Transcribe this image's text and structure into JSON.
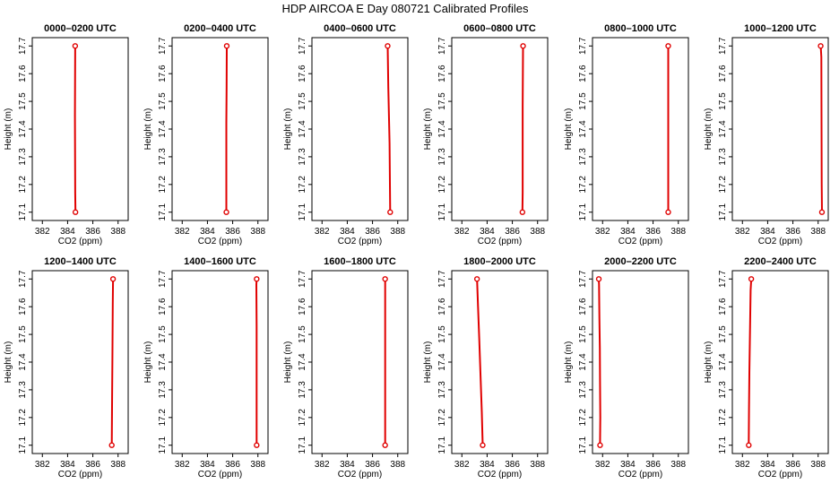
{
  "figure": {
    "title": "HDP AIRCOA E  Day 080721  Calibrated Profiles"
  },
  "colors": {
    "profile_line": "#e00000",
    "marker": "#e00000",
    "axis": "#000000",
    "background": "#ffffff"
  },
  "chart_data": [
    {
      "type": "line",
      "title": "0000–0200 UTC",
      "xlabel": "CO2 (ppm)",
      "ylabel": "Height (m)",
      "xlim": [
        381.2,
        388.8
      ],
      "ylim": [
        17.07,
        17.73
      ],
      "xticks": [
        382,
        384,
        386,
        388
      ],
      "yticks": [
        17.1,
        17.2,
        17.3,
        17.4,
        17.5,
        17.6,
        17.7
      ],
      "series": [
        {
          "x": [
            384.62,
            384.6,
            384.58,
            384.6
          ],
          "y": [
            17.1,
            17.17,
            17.45,
            17.7
          ]
        }
      ],
      "markers": [
        {
          "x": 384.62,
          "y": 17.1
        },
        {
          "x": 384.6,
          "y": 17.7
        }
      ]
    },
    {
      "type": "line",
      "title": "0200–0400 UTC",
      "xlabel": "CO2 (ppm)",
      "ylabel": "Height (m)",
      "xlim": [
        381.2,
        388.8
      ],
      "ylim": [
        17.07,
        17.73
      ],
      "xticks": [
        382,
        384,
        386,
        388
      ],
      "yticks": [
        17.1,
        17.2,
        17.3,
        17.4,
        17.5,
        17.6,
        17.7
      ],
      "series": [
        {
          "x": [
            385.5,
            385.5,
            385.52,
            385.53
          ],
          "y": [
            17.1,
            17.42,
            17.55,
            17.7
          ]
        }
      ],
      "markers": [
        {
          "x": 385.5,
          "y": 17.1
        },
        {
          "x": 385.53,
          "y": 17.7
        }
      ]
    },
    {
      "type": "line",
      "title": "0400–0600 UTC",
      "xlabel": "CO2 (ppm)",
      "ylabel": "Height (m)",
      "xlim": [
        381.2,
        388.8
      ],
      "ylim": [
        17.07,
        17.73
      ],
      "xticks": [
        382,
        384,
        386,
        388
      ],
      "yticks": [
        17.1,
        17.2,
        17.3,
        17.4,
        17.5,
        17.6,
        17.7
      ],
      "series": [
        {
          "x": [
            387.4,
            387.38,
            387.35,
            387.3,
            387.25,
            387.2
          ],
          "y": [
            17.1,
            17.2,
            17.35,
            17.45,
            17.55,
            17.7
          ]
        }
      ],
      "markers": [
        {
          "x": 387.4,
          "y": 17.1
        },
        {
          "x": 387.2,
          "y": 17.7
        }
      ]
    },
    {
      "type": "line",
      "title": "0600–0800 UTC",
      "xlabel": "CO2 (ppm)",
      "ylabel": "Height (m)",
      "xlim": [
        381.2,
        388.8
      ],
      "ylim": [
        17.07,
        17.73
      ],
      "xticks": [
        382,
        384,
        386,
        388
      ],
      "yticks": [
        17.1,
        17.2,
        17.3,
        17.4,
        17.5,
        17.6,
        17.7
      ],
      "series": [
        {
          "x": [
            386.8,
            386.82,
            386.82,
            386.85
          ],
          "y": [
            17.1,
            17.17,
            17.48,
            17.7
          ]
        }
      ],
      "markers": [
        {
          "x": 386.8,
          "y": 17.1
        },
        {
          "x": 386.85,
          "y": 17.7
        }
      ]
    },
    {
      "type": "line",
      "title": "0800–1000 UTC",
      "xlabel": "CO2 (ppm)",
      "ylabel": "Height (m)",
      "xlim": [
        381.2,
        388.8
      ],
      "ylim": [
        17.07,
        17.73
      ],
      "xticks": [
        382,
        384,
        386,
        388
      ],
      "yticks": [
        17.1,
        17.2,
        17.3,
        17.4,
        17.5,
        17.6,
        17.7
      ],
      "series": [
        {
          "x": [
            387.2,
            387.2
          ],
          "y": [
            17.1,
            17.7
          ]
        }
      ],
      "markers": [
        {
          "x": 387.2,
          "y": 17.1
        },
        {
          "x": 387.2,
          "y": 17.7
        }
      ]
    },
    {
      "type": "line",
      "title": "1000–1200 UTC",
      "xlabel": "CO2 (ppm)",
      "ylabel": "Height (m)",
      "xlim": [
        381.2,
        388.8
      ],
      "ylim": [
        17.07,
        17.73
      ],
      "xticks": [
        382,
        384,
        386,
        388
      ],
      "yticks": [
        17.1,
        17.2,
        17.3,
        17.4,
        17.5,
        17.6,
        17.7
      ],
      "series": [
        {
          "x": [
            388.3,
            388.28,
            388.25,
            388.2
          ],
          "y": [
            17.1,
            17.2,
            17.66,
            17.7
          ]
        }
      ],
      "markers": [
        {
          "x": 388.3,
          "y": 17.1
        },
        {
          "x": 388.2,
          "y": 17.7
        }
      ]
    },
    {
      "type": "line",
      "title": "1200–1400 UTC",
      "xlabel": "CO2 (ppm)",
      "ylabel": "Height (m)",
      "xlim": [
        381.2,
        388.8
      ],
      "ylim": [
        17.07,
        17.73
      ],
      "xticks": [
        382,
        384,
        386,
        388
      ],
      "yticks": [
        17.1,
        17.2,
        17.3,
        17.4,
        17.5,
        17.6,
        17.7
      ],
      "series": [
        {
          "x": [
            387.5,
            387.52,
            387.55,
            387.58,
            387.6
          ],
          "y": [
            17.1,
            17.24,
            17.41,
            17.61,
            17.7
          ]
        }
      ],
      "markers": [
        {
          "x": 387.5,
          "y": 17.1
        },
        {
          "x": 387.6,
          "y": 17.7
        }
      ]
    },
    {
      "type": "line",
      "title": "1400–1600 UTC",
      "xlabel": "CO2 (ppm)",
      "ylabel": "Height (m)",
      "xlim": [
        381.2,
        388.8
      ],
      "ylim": [
        17.07,
        17.73
      ],
      "xticks": [
        382,
        384,
        386,
        388
      ],
      "yticks": [
        17.1,
        17.2,
        17.3,
        17.4,
        17.5,
        17.6,
        17.7
      ],
      "series": [
        {
          "x": [
            387.9,
            387.9,
            387.88,
            387.9
          ],
          "y": [
            17.1,
            17.53,
            17.68,
            17.7
          ]
        }
      ],
      "markers": [
        {
          "x": 387.9,
          "y": 17.1
        },
        {
          "x": 387.9,
          "y": 17.7
        }
      ]
    },
    {
      "type": "line",
      "title": "1600–1800 UTC",
      "xlabel": "CO2 (ppm)",
      "ylabel": "Height (m)",
      "xlim": [
        381.2,
        388.8
      ],
      "ylim": [
        17.07,
        17.73
      ],
      "xticks": [
        382,
        384,
        386,
        388
      ],
      "yticks": [
        17.1,
        17.2,
        17.3,
        17.4,
        17.5,
        17.6,
        17.7
      ],
      "series": [
        {
          "x": [
            387.0,
            387.0
          ],
          "y": [
            17.1,
            17.7
          ]
        }
      ],
      "markers": [
        {
          "x": 387.0,
          "y": 17.1
        },
        {
          "x": 387.0,
          "y": 17.7
        }
      ]
    },
    {
      "type": "line",
      "title": "1800–2000 UTC",
      "xlabel": "CO2 (ppm)",
      "ylabel": "Height (m)",
      "xlim": [
        381.2,
        388.8
      ],
      "ylim": [
        17.07,
        17.73
      ],
      "xticks": [
        382,
        384,
        386,
        388
      ],
      "yticks": [
        17.1,
        17.2,
        17.3,
        17.4,
        17.5,
        17.6,
        17.7
      ],
      "series": [
        {
          "x": [
            383.65,
            383.58,
            383.48,
            383.38,
            383.28,
            383.2
          ],
          "y": [
            17.1,
            17.22,
            17.35,
            17.48,
            17.6,
            17.7
          ]
        }
      ],
      "markers": [
        {
          "x": 383.65,
          "y": 17.1
        },
        {
          "x": 383.2,
          "y": 17.7
        }
      ]
    },
    {
      "type": "line",
      "title": "2000–2200 UTC",
      "xlabel": "CO2 (ppm)",
      "ylabel": "Height (m)",
      "xlim": [
        381.2,
        388.8
      ],
      "ylim": [
        17.07,
        17.73
      ],
      "xticks": [
        382,
        384,
        386,
        388
      ],
      "yticks": [
        17.1,
        17.2,
        17.3,
        17.4,
        17.5,
        17.6,
        17.7
      ],
      "series": [
        {
          "x": [
            381.8,
            381.82,
            381.8,
            381.78,
            381.75,
            381.72,
            381.7
          ],
          "y": [
            17.1,
            17.2,
            17.33,
            17.45,
            17.56,
            17.68,
            17.7
          ]
        }
      ],
      "markers": [
        {
          "x": 381.8,
          "y": 17.1
        },
        {
          "x": 381.7,
          "y": 17.7
        }
      ]
    },
    {
      "type": "line",
      "title": "2200–2400 UTC",
      "xlabel": "CO2 (ppm)",
      "ylabel": "Height (m)",
      "xlim": [
        381.2,
        388.8
      ],
      "ylim": [
        17.07,
        17.73
      ],
      "xticks": [
        382,
        384,
        386,
        388
      ],
      "yticks": [
        17.1,
        17.2,
        17.3,
        17.4,
        17.5,
        17.6,
        17.7
      ],
      "series": [
        {
          "x": [
            382.5,
            382.52,
            382.55,
            382.6,
            382.65,
            382.7
          ],
          "y": [
            17.1,
            17.23,
            17.36,
            17.51,
            17.66,
            17.7
          ]
        }
      ],
      "markers": [
        {
          "x": 382.5,
          "y": 17.1
        },
        {
          "x": 382.7,
          "y": 17.7
        }
      ]
    }
  ]
}
